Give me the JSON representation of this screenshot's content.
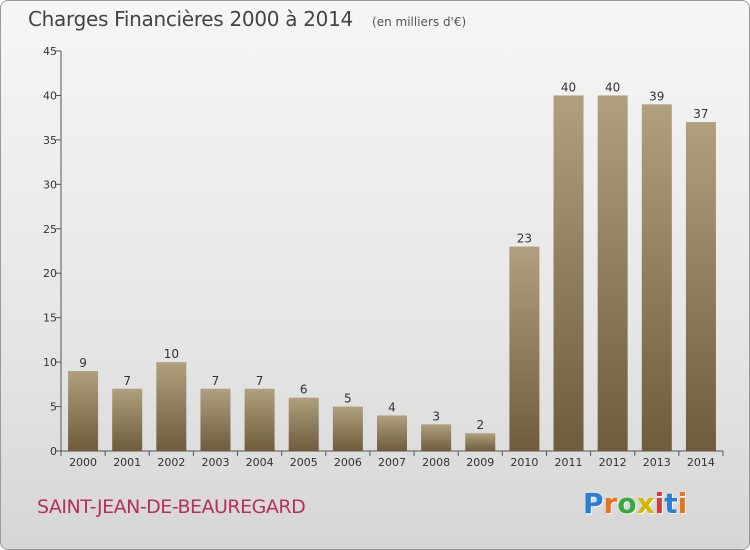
{
  "header": {
    "title": "Charges Financières 2000 à 2014",
    "unit": "(en milliers d'€)"
  },
  "footer": {
    "commune": "SAINT-JEAN-DE-BEAUREGARD",
    "brand": "Proxiti",
    "brand_colors": [
      "#2a7fd4",
      "#e8731c",
      "#3aa83a",
      "#d4b800",
      "#d43a3a",
      "#2a7fd4",
      "#e8731c"
    ]
  },
  "colors": {
    "bar_light": "#b0a07e",
    "bar_dark": "#6e5c3c",
    "axis": "#555555",
    "commune": "#b5305b"
  },
  "chart_data": {
    "type": "bar",
    "title": "Charges Financières 2000 à 2014",
    "subtitle": "(en milliers d'€)",
    "xlabel": "",
    "ylabel": "",
    "categories": [
      "2000",
      "2001",
      "2002",
      "2003",
      "2004",
      "2005",
      "2006",
      "2007",
      "2008",
      "2009",
      "2010",
      "2011",
      "2012",
      "2013",
      "2014"
    ],
    "values": [
      9,
      7,
      10,
      7,
      7,
      6,
      5,
      4,
      3,
      2,
      23,
      40,
      40,
      39,
      37
    ],
    "ylim": [
      0,
      45
    ],
    "yticks": [
      0,
      5,
      10,
      15,
      20,
      25,
      30,
      35,
      40,
      45
    ],
    "grid": false,
    "data_labels": true
  }
}
